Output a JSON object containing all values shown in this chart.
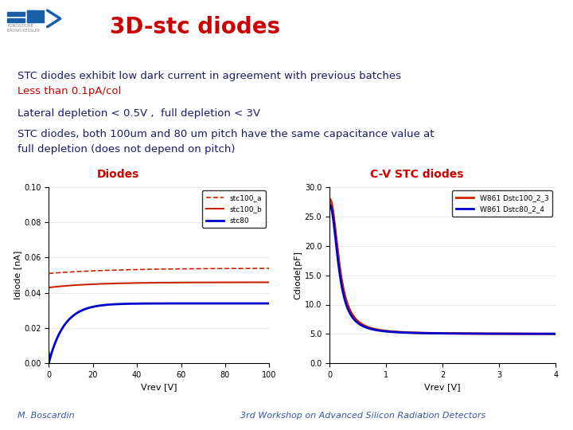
{
  "title": "3D-stc diodes",
  "title_color": "#cc0000",
  "header_bar_color": "#1a3a6b",
  "bg_color": "#ffffff",
  "text1": "STC diodes exhibit low dark current in agreement with previous batches",
  "text2": "Less than 0.1pA/col",
  "text2_color": "#cc0000",
  "text3": "Lateral depletion < 0.5V ,  full depletion < 3V",
  "text4a": "STC diodes, both 100um and 80 um pitch have the same capacitance value at",
  "text4b": "full depletion (does not depend on pitch)",
  "text_main_color": "#1a1a6e",
  "footer_left": "M. Boscardin",
  "footer_right": "3rd Workshop on Advanced Silicon Radiation Detectors",
  "footer_color": "#3355aa",
  "plot1_title": "Diodes",
  "plot1_title_color": "#cc0000",
  "plot1_xlabel": "Vrev [V]",
  "plot1_ylabel": "Idiode [nA]",
  "plot1_xlim": [
    0,
    100
  ],
  "plot1_ylim": [
    0.0,
    0.1
  ],
  "plot1_yticks": [
    0.0,
    0.02,
    0.04,
    0.06,
    0.08,
    0.1
  ],
  "plot1_xticks": [
    0,
    20,
    40,
    60,
    80,
    100
  ],
  "plot2_title": "C-V STC diodes",
  "plot2_title_color": "#cc0000",
  "plot2_xlabel": "Vrev [V]",
  "plot2_ylabel": "Cdiode[pF]",
  "plot2_xlim": [
    0,
    4
  ],
  "plot2_ylim": [
    0.0,
    30.0
  ],
  "plot2_yticks": [
    0.0,
    5.0,
    10.0,
    15.0,
    20.0,
    25.0,
    30.0
  ],
  "plot2_xticks": [
    0,
    1,
    2,
    3,
    4
  ],
  "legend1_labels": [
    "stc100_a",
    "stc100_b",
    "stc80"
  ],
  "legend2_labels": [
    "W861 Dstc100_2_3",
    "W861 Dstc80_2_4"
  ],
  "line_red": "#cc2200",
  "line_blue": "#0000cc",
  "logo_blue": "#1a5fa8",
  "logo_gray": "#888888"
}
